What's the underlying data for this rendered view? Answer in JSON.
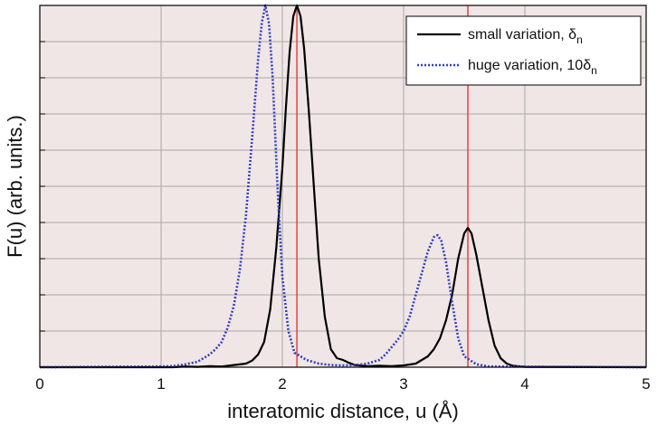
{
  "chart_data": {
    "type": "line",
    "xlabel": "interatomic distance, u (Å)",
    "ylabel": "F(u)  (arb. units.)",
    "xlim": [
      0,
      5
    ],
    "ylim": [
      0,
      1.0
    ],
    "x_ticks": [
      "0",
      "1",
      "2",
      "3",
      "4",
      "5"
    ],
    "grid": true,
    "legend_position": "top-right",
    "reference_lines_x": [
      2.12,
      3.53
    ],
    "series": [
      {
        "name": "small variation, δn",
        "legend_main": "small variation, δ",
        "legend_sub": "n",
        "style": "solid",
        "color": "#000000",
        "x": [
          0,
          1.1,
          1.2,
          1.3,
          1.4,
          1.5,
          1.6,
          1.7,
          1.75,
          1.8,
          1.85,
          1.9,
          1.95,
          2.0,
          2.03,
          2.06,
          2.09,
          2.12,
          2.15,
          2.18,
          2.22,
          2.26,
          2.3,
          2.35,
          2.4,
          2.45,
          2.5,
          2.55,
          2.6,
          2.7,
          2.8,
          2.9,
          3.0,
          3.1,
          3.2,
          3.25,
          3.3,
          3.35,
          3.4,
          3.45,
          3.5,
          3.53,
          3.56,
          3.6,
          3.65,
          3.7,
          3.75,
          3.8,
          3.85,
          3.9,
          4.0,
          5.0
        ],
        "y": [
          0,
          0,
          0.002,
          0.001,
          0.003,
          0.002,
          0.006,
          0.01,
          0.018,
          0.035,
          0.07,
          0.16,
          0.33,
          0.55,
          0.72,
          0.87,
          0.97,
          1.0,
          0.97,
          0.88,
          0.7,
          0.5,
          0.3,
          0.14,
          0.05,
          0.025,
          0.02,
          0.012,
          0.006,
          0.003,
          0.004,
          0.003,
          0.005,
          0.01,
          0.03,
          0.05,
          0.08,
          0.13,
          0.2,
          0.3,
          0.37,
          0.385,
          0.37,
          0.31,
          0.22,
          0.13,
          0.06,
          0.025,
          0.01,
          0.004,
          0.001,
          0
        ]
      },
      {
        "name": "huge variation, 10δn",
        "legend_main": "huge variation, 10δ",
        "legend_sub": "n",
        "style": "dotted",
        "color": "#3040c0",
        "x": [
          0,
          1.0,
          1.1,
          1.2,
          1.3,
          1.4,
          1.45,
          1.5,
          1.55,
          1.6,
          1.65,
          1.7,
          1.75,
          1.8,
          1.83,
          1.86,
          1.89,
          1.92,
          1.96,
          2.0,
          2.05,
          2.1,
          2.2,
          2.3,
          2.4,
          2.5,
          2.6,
          2.7,
          2.8,
          2.85,
          2.9,
          2.95,
          3.0,
          3.05,
          3.1,
          3.15,
          3.2,
          3.25,
          3.28,
          3.31,
          3.35,
          3.4,
          3.45,
          3.5,
          3.6,
          3.7,
          5.0
        ],
        "y": [
          0,
          0.002,
          0.003,
          0.008,
          0.015,
          0.035,
          0.05,
          0.07,
          0.11,
          0.17,
          0.27,
          0.42,
          0.63,
          0.85,
          0.95,
          1.0,
          0.95,
          0.8,
          0.5,
          0.25,
          0.1,
          0.04,
          0.02,
          0.01,
          0.006,
          0.005,
          0.006,
          0.01,
          0.02,
          0.035,
          0.055,
          0.075,
          0.1,
          0.14,
          0.2,
          0.26,
          0.32,
          0.36,
          0.365,
          0.35,
          0.29,
          0.18,
          0.08,
          0.03,
          0.008,
          0.002,
          0
        ]
      }
    ]
  }
}
